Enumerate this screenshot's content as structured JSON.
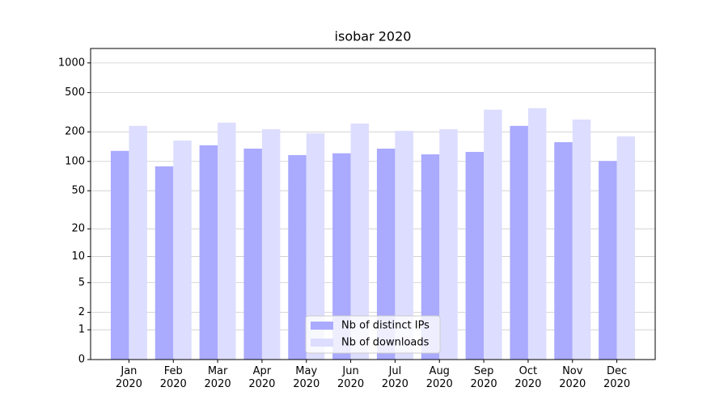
{
  "chart_data": {
    "type": "bar",
    "title": "isobar 2020",
    "scale": "log1p",
    "categories": [
      "Jan\n2020",
      "Feb\n2020",
      "Mar\n2020",
      "Apr\n2020",
      "May\n2020",
      "Jun\n2020",
      "Jul\n2020",
      "Aug\n2020",
      "Sep\n2020",
      "Oct\n2020",
      "Nov\n2020",
      "Dec\n2020"
    ],
    "series": [
      {
        "name": "Nb of distinct IPs",
        "color": "#aaaaff",
        "values": [
          128,
          89,
          146,
          135,
          116,
          121,
          135,
          118,
          125,
          230,
          157,
          101
        ]
      },
      {
        "name": "Nb of downloads",
        "color": "#ddddff",
        "values": [
          230,
          163,
          248,
          213,
          194,
          243,
          205,
          213,
          336,
          348,
          267,
          180
        ]
      }
    ],
    "ylim": [
      0,
      1400
    ],
    "yticks": [
      0,
      1,
      2,
      5,
      10,
      20,
      50,
      100,
      200,
      500,
      1000
    ],
    "grid": true,
    "legend": "lower center"
  }
}
